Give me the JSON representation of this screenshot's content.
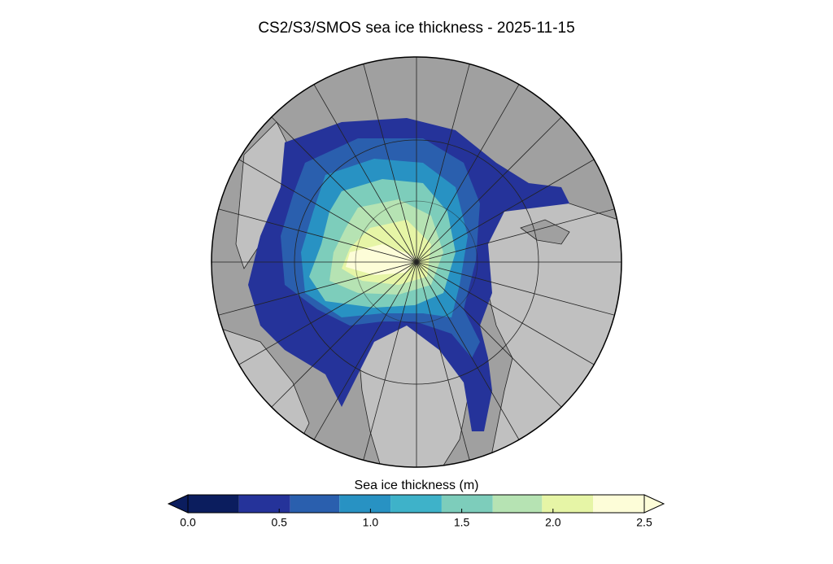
{
  "title": "CS2/S3/SMOS sea ice thickness - 2025-11-15",
  "colorbar": {
    "label": "Sea ice thickness (m)",
    "lim": [
      0,
      2.5
    ],
    "bounds": [
      0,
      0.28,
      0.56,
      0.83,
      1.11,
      1.39,
      1.67,
      1.94,
      2.22,
      2.5
    ],
    "colors": [
      "#0b1d5e",
      "#25339a",
      "#2a5fae",
      "#2892c3",
      "#3eb2c9",
      "#7dcdbb",
      "#b6e3b3",
      "#e6f5a6",
      "#fdfdd8"
    ],
    "under_color": "#0b1d5e",
    "over_color": "#fdfdd8",
    "ticks": [
      {
        "value": 0,
        "label": "0.0"
      },
      {
        "value": 0.5,
        "label": "0.5"
      },
      {
        "value": 1,
        "label": "1.0"
      },
      {
        "value": 1.5,
        "label": "1.5"
      },
      {
        "value": 2,
        "label": "2.0"
      },
      {
        "value": 2.5,
        "label": "2.5"
      }
    ]
  }
}
